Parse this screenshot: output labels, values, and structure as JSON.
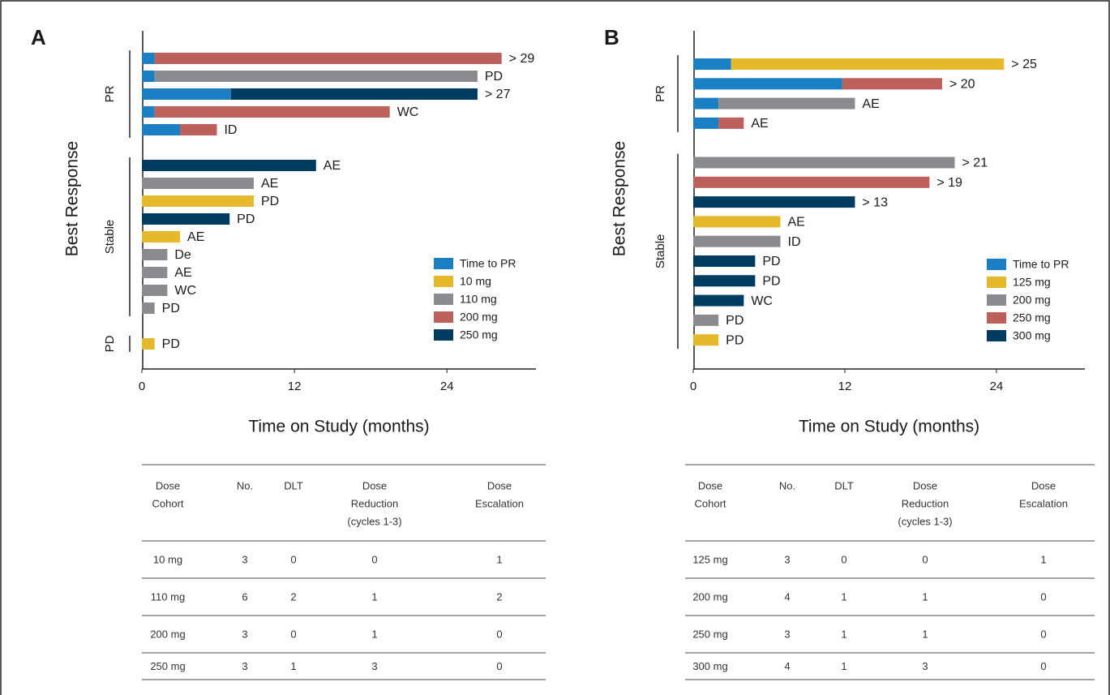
{
  "chart_data": [
    {
      "type": "swimmer",
      "panel_label": "A",
      "ylabel": "Best Response",
      "xlabel": "Time on Study (months)",
      "xlim": [
        0,
        31
      ],
      "xticks": [
        0,
        12,
        24
      ],
      "legend": "lower right",
      "categories": [
        "PR",
        "PR",
        "PR",
        "PR",
        "PR",
        "Stable",
        "Stable",
        "Stable",
        "Stable",
        "Stable",
        "Stable",
        "Stable",
        "Stable",
        "Stable",
        "PD"
      ],
      "bar_labels": [
        "> 29",
        "PD",
        "> 27",
        "WC",
        "ID",
        "AE",
        "AE",
        "PD",
        "PD",
        "AE",
        "De",
        "AE",
        "WC",
        "PD",
        "PD"
      ],
      "series": [
        {
          "name": "Time to PR",
          "color": "#1b7fc4",
          "values": [
            1,
            1,
            7,
            1,
            3,
            null,
            null,
            null,
            null,
            null,
            null,
            null,
            null,
            null,
            null
          ]
        },
        {
          "name": "10 mg",
          "color": "#e6b82c",
          "values": [
            null,
            null,
            null,
            null,
            null,
            null,
            null,
            8.8,
            null,
            3,
            null,
            null,
            null,
            null,
            1
          ]
        },
        {
          "name": "110 mg",
          "color": "#898b8e",
          "values": [
            null,
            25.4,
            null,
            null,
            null,
            null,
            8.8,
            null,
            null,
            null,
            2,
            2,
            2,
            1,
            null
          ]
        },
        {
          "name": "200 mg",
          "color": "#bd5f5a",
          "values": [
            27.3,
            null,
            null,
            18.5,
            2.9,
            null,
            null,
            null,
            null,
            null,
            null,
            null,
            null,
            null,
            null
          ]
        },
        {
          "name": "250 mg",
          "color": "#003c62",
          "values": [
            null,
            null,
            19.4,
            null,
            null,
            13.7,
            null,
            null,
            6.9,
            null,
            null,
            null,
            null,
            null,
            null
          ]
        }
      ]
    },
    {
      "type": "swimmer",
      "panel_label": "B",
      "ylabel": "Best Response",
      "xlabel": "Time on Study (months)",
      "xlim": [
        0,
        31
      ],
      "xticks": [
        0,
        12,
        24
      ],
      "legend": "lower right",
      "categories": [
        "PR",
        "PR",
        "PR",
        "PR",
        "Stable",
        "Stable",
        "Stable",
        "Stable",
        "Stable",
        "Stable",
        "Stable",
        "Stable",
        "Stable",
        "Stable"
      ],
      "bar_labels": [
        "> 25",
        "> 20",
        "AE",
        "AE",
        "> 21",
        "> 19",
        "> 13",
        "AE",
        "ID",
        "PD",
        "PD",
        "WC",
        "PD",
        "PD"
      ],
      "series": [
        {
          "name": "Time to PR",
          "color": "#1b7fc4",
          "values": [
            3,
            11.8,
            2,
            2,
            null,
            null,
            null,
            null,
            null,
            null,
            null,
            null,
            null,
            null
          ]
        },
        {
          "name": "125 mg",
          "color": "#e6b82c",
          "values": [
            21.6,
            null,
            null,
            null,
            null,
            null,
            null,
            6.9,
            null,
            null,
            null,
            null,
            null,
            2
          ]
        },
        {
          "name": "200 mg",
          "color": "#898b8e",
          "values": [
            null,
            null,
            10.8,
            null,
            20.7,
            null,
            null,
            null,
            6.9,
            null,
            null,
            null,
            2,
            null
          ]
        },
        {
          "name": "250 mg",
          "color": "#bd5f5a",
          "values": [
            null,
            7.9,
            null,
            2,
            null,
            18.7,
            null,
            null,
            null,
            null,
            null,
            null,
            null,
            null
          ]
        },
        {
          "name": "300 mg",
          "color": "#003c62",
          "values": [
            null,
            null,
            null,
            null,
            null,
            null,
            12.8,
            null,
            null,
            4.9,
            4.9,
            4,
            null,
            null
          ]
        }
      ]
    }
  ],
  "tables": [
    {
      "columns": [
        [
          "Dose",
          "Cohort"
        ],
        [
          "No."
        ],
        [
          "DLT"
        ],
        [
          "Dose",
          "Reduction",
          "(cycles 1-3)"
        ],
        [
          "Dose",
          "Escalation"
        ]
      ],
      "rows": [
        [
          "10 mg",
          3,
          0,
          0,
          1
        ],
        [
          "110 mg",
          6,
          2,
          1,
          2
        ],
        [
          "200 mg",
          3,
          0,
          1,
          0
        ],
        [
          "250 mg",
          3,
          1,
          3,
          0
        ]
      ]
    },
    {
      "columns": [
        [
          "Dose",
          "Cohort"
        ],
        [
          "No."
        ],
        [
          "DLT"
        ],
        [
          "Dose",
          "Reduction",
          "(cycles 1-3)"
        ],
        [
          "Dose",
          "Escalation"
        ]
      ],
      "rows": [
        [
          "125 mg",
          3,
          0,
          0,
          1
        ],
        [
          "200 mg",
          4,
          1,
          1,
          0
        ],
        [
          "250 mg",
          3,
          1,
          1,
          0
        ],
        [
          "300 mg",
          4,
          1,
          3,
          0
        ]
      ]
    }
  ]
}
